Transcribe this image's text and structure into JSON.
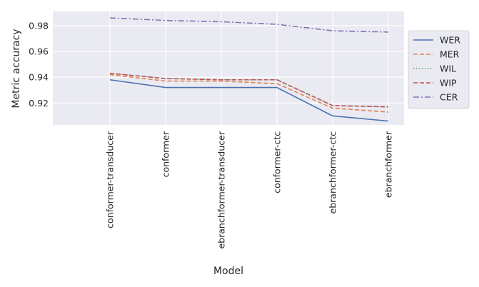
{
  "chart_data": {
    "type": "line",
    "title": "",
    "xlabel": "Model",
    "ylabel": "Metric accuracy",
    "categories": [
      "conformer-transducer",
      "conformer",
      "ebranchformer-transducer",
      "conformer-ctc",
      "ebranchformer-ctc",
      "ebranchformer"
    ],
    "ylim": [
      0.903,
      0.991
    ],
    "yticks": [
      0.92,
      0.94,
      0.96,
      0.98
    ],
    "ytick_labels": [
      "0.92",
      "0.94",
      "0.96",
      "0.98"
    ],
    "grid": true,
    "legend_position": "right",
    "series": [
      {
        "name": "WER",
        "color": "#4c72b0",
        "dash": "solid",
        "values": [
          0.938,
          0.932,
          0.932,
          0.932,
          0.91,
          0.906
        ]
      },
      {
        "name": "MER",
        "color": "#dd8452",
        "dash": "dashed",
        "values": [
          0.942,
          0.937,
          0.937,
          0.935,
          0.916,
          0.913
        ]
      },
      {
        "name": "WIL",
        "color": "#55a868",
        "dash": "dotted",
        "values": [
          0.943,
          0.939,
          0.938,
          0.938,
          0.918,
          0.917
        ]
      },
      {
        "name": "WIP",
        "color": "#c44e52",
        "dash": "dashed",
        "values": [
          0.943,
          0.939,
          0.938,
          0.938,
          0.918,
          0.917
        ]
      },
      {
        "name": "CER",
        "color": "#8172b3",
        "dash": "dashdot",
        "values": [
          0.986,
          0.984,
          0.983,
          0.981,
          0.976,
          0.975
        ]
      }
    ]
  }
}
